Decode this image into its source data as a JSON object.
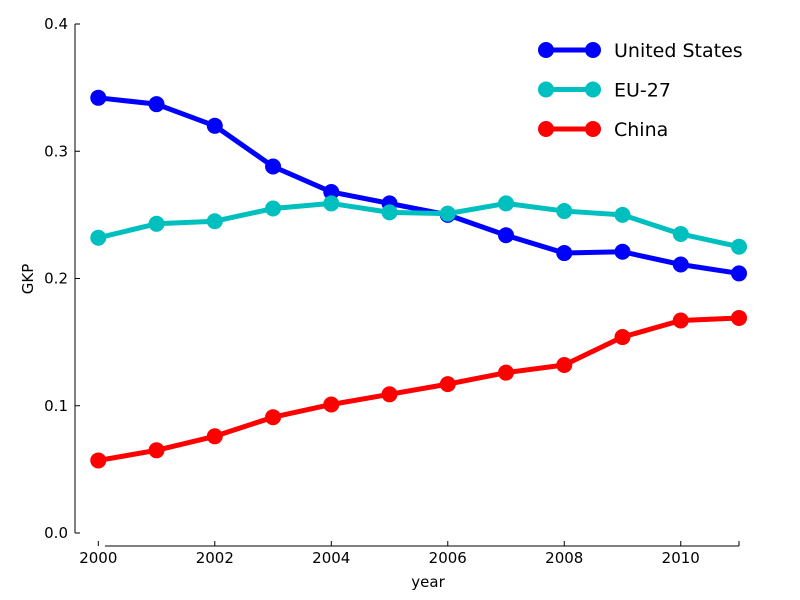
{
  "chart_data": {
    "type": "line",
    "title": "",
    "xlabel": "year",
    "ylabel": "GKP",
    "xlim": [
      1999.6,
      2011
    ],
    "ylim": [
      0.0,
      0.4
    ],
    "x_ticks": [
      2000,
      2002,
      2004,
      2006,
      2008,
      2010
    ],
    "y_ticks": [
      0.0,
      0.1,
      0.2,
      0.3,
      0.4
    ],
    "y_tick_labels": [
      "0.0",
      "0.1",
      "0.2",
      "0.3",
      "0.4"
    ],
    "grid": false,
    "legend_position": "top-right",
    "x": [
      2000,
      2001,
      2002,
      2003,
      2004,
      2005,
      2006,
      2007,
      2008,
      2009,
      2010,
      2011
    ],
    "series": [
      {
        "name": "United States",
        "color": "#0000ff",
        "values": [
          0.342,
          0.337,
          0.32,
          0.288,
          0.268,
          0.259,
          0.25,
          0.234,
          0.22,
          0.221,
          0.211,
          0.204
        ]
      },
      {
        "name": "EU-27",
        "color": "#00bfbf",
        "values": [
          0.232,
          0.243,
          0.245,
          0.255,
          0.259,
          0.252,
          0.251,
          0.259,
          0.253,
          0.25,
          0.235,
          0.225
        ]
      },
      {
        "name": "China",
        "color": "#ff0000",
        "values": [
          0.057,
          0.065,
          0.076,
          0.091,
          0.101,
          0.109,
          0.117,
          0.126,
          0.132,
          0.154,
          0.167,
          0.169
        ]
      }
    ]
  }
}
